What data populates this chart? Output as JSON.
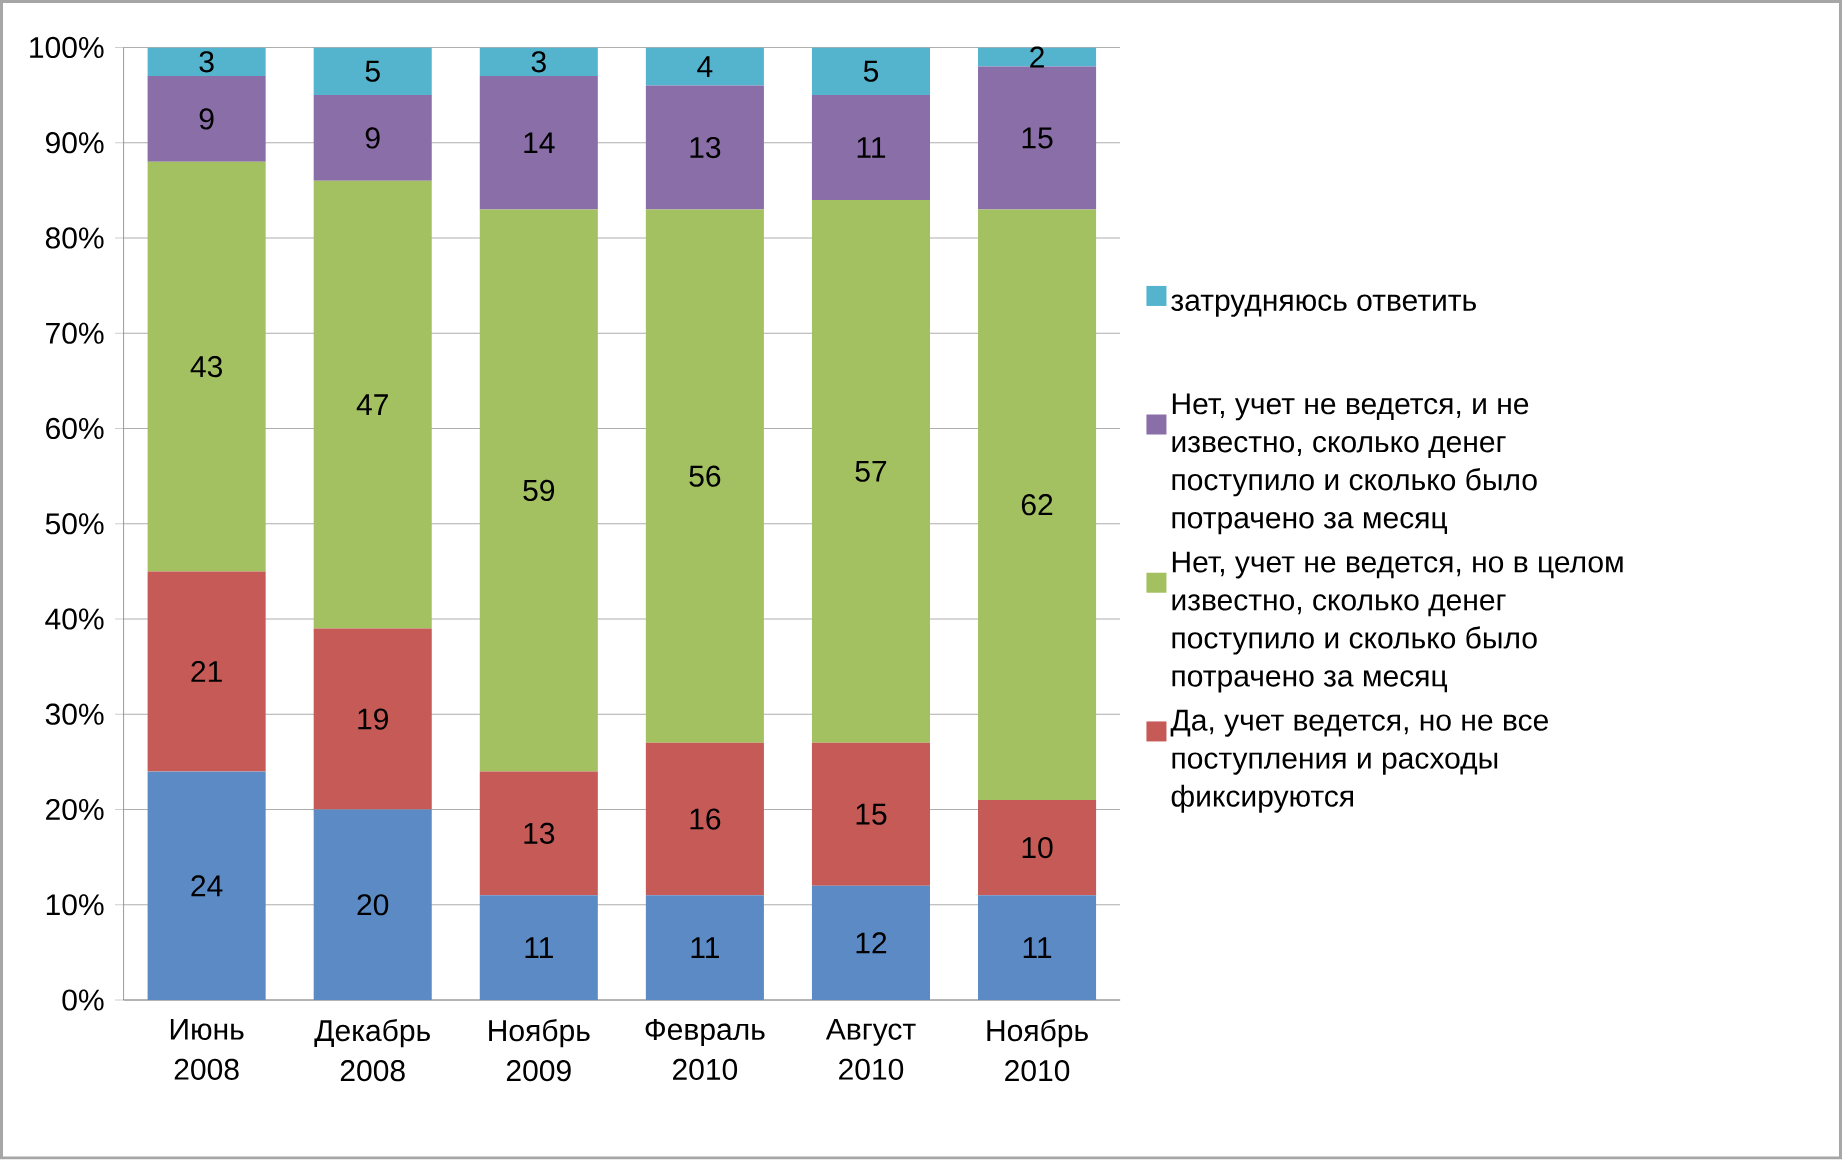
{
  "chart_data": {
    "type": "bar",
    "stacked": true,
    "categories": [
      "Июнь 2008",
      "Декабрь 2008",
      "Ноябрь 2009",
      "Февраль 2010",
      "Август 2010",
      "Ноябрь 2010"
    ],
    "series": [
      {
        "color": "#5b8ac5",
        "values": [
          24,
          20,
          11,
          11,
          12,
          11
        ]
      },
      {
        "name": "Да, учет ведется, но не все поступления и расходы фиксируются",
        "color": "#c55a56",
        "values": [
          21,
          19,
          13,
          16,
          15,
          10
        ]
      },
      {
        "name": "Нет, учет не ведется, но в целом известно, сколько денег поступило и сколько было потрачено за месяц",
        "color": "#a4c162",
        "values": [
          43,
          47,
          59,
          56,
          57,
          62
        ]
      },
      {
        "name": "Нет, учет не ведется, и не известно, сколько денег поступило и сколько было потрачено за месяц",
        "color": "#8a6ea8",
        "values": [
          9,
          9,
          14,
          13,
          11,
          15
        ]
      },
      {
        "name": "затрудняюсь ответить",
        "color": "#55b4cd",
        "values": [
          3,
          5,
          3,
          4,
          5,
          2
        ]
      }
    ],
    "ylim": [
      0,
      100
    ],
    "yticks": [
      {
        "value": 0,
        "label": "0%"
      },
      {
        "value": 10,
        "label": "10%"
      },
      {
        "value": 20,
        "label": "20%"
      },
      {
        "value": 30,
        "label": "30%"
      },
      {
        "value": 40,
        "label": "40%"
      },
      {
        "value": 50,
        "label": "50%"
      },
      {
        "value": 60,
        "label": "60%"
      },
      {
        "value": 70,
        "label": "70%"
      },
      {
        "value": 80,
        "label": "80%"
      },
      {
        "value": 90,
        "label": "90%"
      },
      {
        "value": 100,
        "label": "100%"
      }
    ],
    "grid": "y",
    "legend": "right",
    "data_labels": true
  }
}
